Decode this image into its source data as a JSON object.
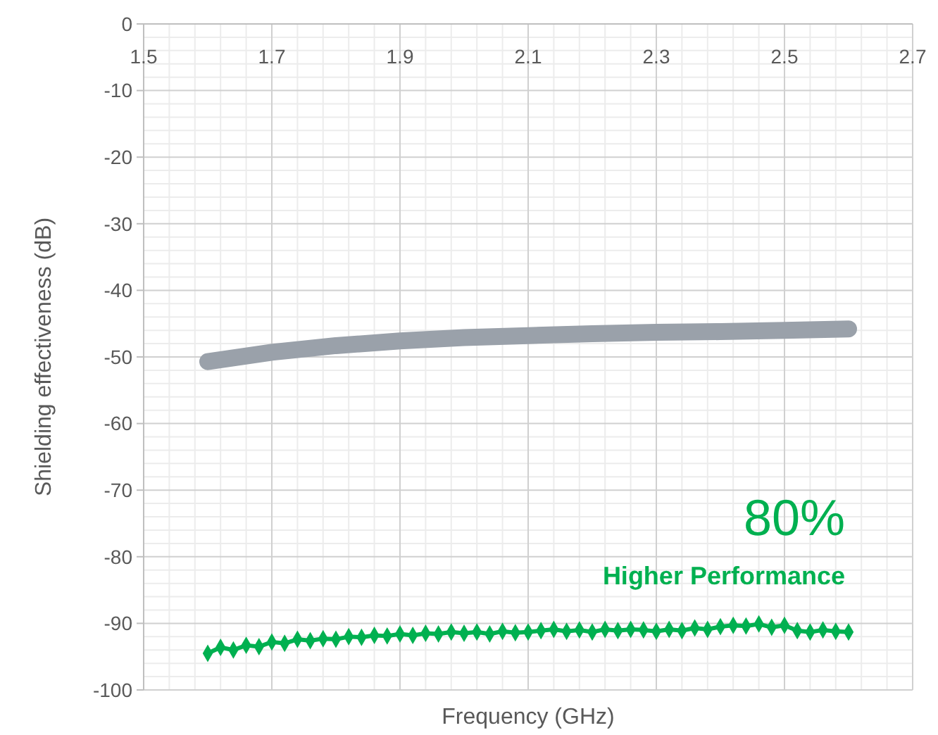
{
  "chart_data": {
    "type": "line",
    "xlabel": "Frequency (GHz)",
    "ylabel": "Shielding effectiveness (dB)",
    "xlim": [
      1.5,
      2.7
    ],
    "xticks": [
      1.5,
      1.7,
      1.9,
      2.1,
      2.3,
      2.5,
      2.7
    ],
    "ylim": [
      -100,
      0
    ],
    "yticks": [
      0,
      -10,
      -20,
      -30,
      -40,
      -50,
      -60,
      -70,
      -80,
      -90,
      -100
    ],
    "grid": true,
    "annotations": [
      "80%",
      "Higher Performance"
    ],
    "series": [
      {
        "color": "#9aa1aa",
        "marker": "none",
        "line_style": "solid",
        "x": [
          1.6,
          1.7,
          1.8,
          1.9,
          2.0,
          2.1,
          2.2,
          2.3,
          2.4,
          2.5,
          2.6
        ],
        "values": [
          -50.7,
          -49.3,
          -48.3,
          -47.6,
          -47.1,
          -46.8,
          -46.5,
          -46.3,
          -46.2,
          -46.0,
          -45.8
        ]
      },
      {
        "color": "#00b050",
        "marker": "diamond",
        "line_style": "solid",
        "x": [
          1.6,
          1.62,
          1.64,
          1.66,
          1.68,
          1.7,
          1.72,
          1.74,
          1.76,
          1.78,
          1.8,
          1.82,
          1.84,
          1.86,
          1.88,
          1.9,
          1.92,
          1.94,
          1.96,
          1.98,
          2.0,
          2.02,
          2.04,
          2.06,
          2.08,
          2.1,
          2.12,
          2.14,
          2.16,
          2.18,
          2.2,
          2.22,
          2.24,
          2.26,
          2.28,
          2.3,
          2.32,
          2.34,
          2.36,
          2.38,
          2.4,
          2.42,
          2.44,
          2.46,
          2.48,
          2.5,
          2.52,
          2.54,
          2.56,
          2.58,
          2.6
        ],
        "values": [
          -94.5,
          -93.6,
          -94.0,
          -93.3,
          -93.5,
          -92.8,
          -93.0,
          -92.4,
          -92.6,
          -92.3,
          -92.4,
          -92.0,
          -92.1,
          -91.8,
          -91.9,
          -91.6,
          -91.8,
          -91.5,
          -91.6,
          -91.3,
          -91.5,
          -91.3,
          -91.6,
          -91.2,
          -91.4,
          -91.3,
          -91.1,
          -90.9,
          -91.2,
          -91.0,
          -91.3,
          -90.9,
          -91.1,
          -90.9,
          -91.0,
          -91.2,
          -90.9,
          -91.1,
          -90.7,
          -90.9,
          -90.5,
          -90.3,
          -90.4,
          -90.1,
          -90.6,
          -90.3,
          -91.1,
          -91.3,
          -91.0,
          -91.2,
          -91.3
        ]
      }
    ]
  }
}
